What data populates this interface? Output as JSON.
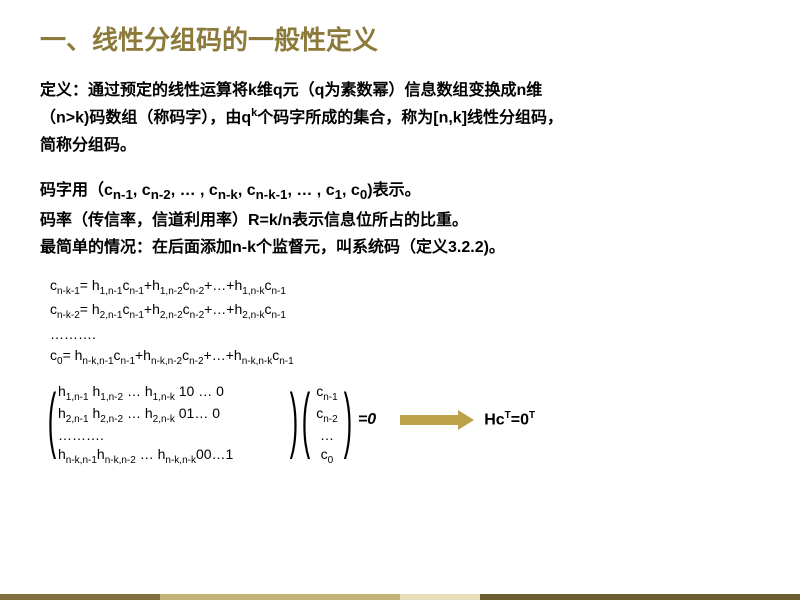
{
  "title": "一、线性分组码的一般性定义",
  "para1_l1": "定义：通过预定的线性运算将k维q元（q为素数幂）信息数组变换成n维",
  "para1_l2a": "（n>k)码数组（称码字），由q",
  "para1_l2sup": "k",
  "para1_l2b": "个码字所成的集合，称为[n,k]线性分组码，",
  "para1_l3": "简称分组码。",
  "line2a": "码字用（c",
  "s_n1": "n-1",
  "comma": ", c",
  "s_n2": "n-2",
  "mid1": ", … , c",
  "s_nk": "n-k",
  "mid2": ", c",
  "s_nk1": "n-k-1",
  "mid3": ", … , c",
  "s_1": "1",
  "mid4": ", c",
  "s_0": "0",
  "tail2": ")表示。",
  "line3": "码率（传信率，信道利用率）R=k/n表示信息位所占的比重。",
  "line4": "最简单的情况：在后面添加n-k个监督元，叫系统码（定义3.2.2)。",
  "eq1": "c<sub>n-k-1</sub>= h<sub>1,n-1</sub>c<sub>n-1</sub>+h<sub>1,n-2</sub>c<sub>n-2</sub>+…+h<sub>1,n-k</sub>c<sub>n-1</sub>",
  "eq2": "c<sub>n-k-2</sub>= h<sub>2,n-1</sub>c<sub>n-1</sub>+h<sub>2,n-2</sub>c<sub>n-2</sub>+…+h<sub>2,n-k</sub>c<sub>n-1</sub>",
  "eq_dots": "……….",
  "eq3": "c<sub>0</sub>= h<sub>n-k,n-1</sub>c<sub>n-1</sub>+h<sub>n-k,n-2</sub>c<sub>n-2</sub>+…+h<sub>n-k,n-k</sub>c<sub>n-1</sub>",
  "m_r1": "h<sub>1,n-1</sub> h<sub>1,n-2</sub>   …  h<sub>1,n-k</sub>   10 … 0",
  "m_r2": "h<sub>2,n-1</sub> h<sub>2,n-2</sub>   …  h<sub>2,n-k</sub>   01…  0",
  "m_rd": "……….",
  "m_r3": "h<sub>n-k,n-1</sub>h<sub>n-k,n-2</sub> …  h<sub>n-k,n-k</sub>00…1",
  "v_r1": "c<sub>n-1</sub>",
  "v_r2": "c<sub>n-2</sub>",
  "v_rd": "…",
  "v_r3": "c<sub>0</sub>",
  "eq_zero": "=0",
  "hc_eq": "Hc<sup>T</sup>=0<sup>T</sup>",
  "colors": {
    "title": "#8b7a3a",
    "text": "#000000",
    "arrow": "#bba24a",
    "footer": [
      "#807040",
      "#c4b376",
      "#e8dfb8",
      "#6b5d2e"
    ]
  }
}
